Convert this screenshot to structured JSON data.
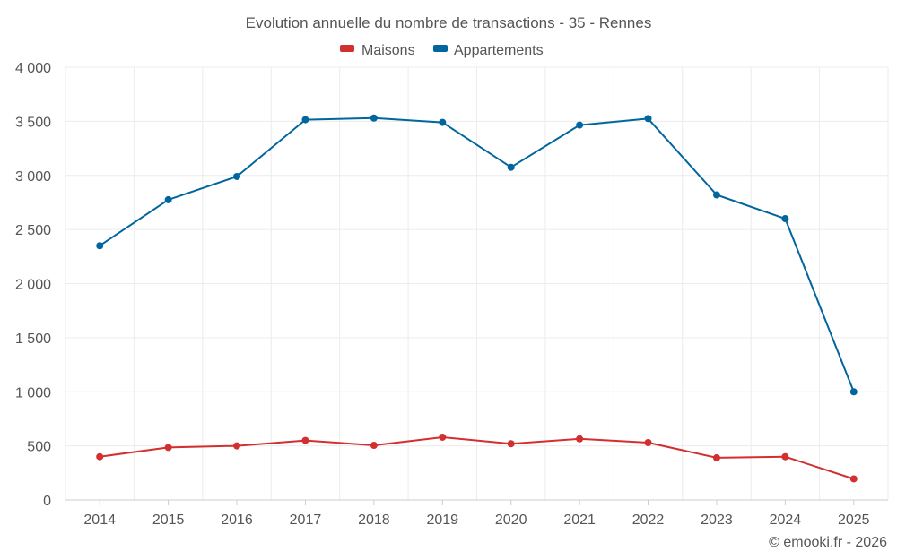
{
  "chart_data": {
    "type": "line",
    "title": "Evolution annuelle du nombre de transactions - 35 - Rennes",
    "categories": [
      "2014",
      "2015",
      "2016",
      "2017",
      "2018",
      "2019",
      "2020",
      "2021",
      "2022",
      "2023",
      "2024",
      "2025"
    ],
    "series": [
      {
        "name": "Maisons",
        "color": "#d32f2f",
        "values": [
          400,
          485,
          500,
          550,
          505,
          580,
          520,
          565,
          530,
          390,
          400,
          195
        ]
      },
      {
        "name": "Appartements",
        "color": "#01669e",
        "values": [
          2350,
          2775,
          2990,
          3515,
          3530,
          3490,
          3075,
          3465,
          3525,
          2820,
          2600,
          1000
        ]
      }
    ],
    "ylim": [
      0,
      4000
    ],
    "yticks": [
      0,
      500,
      1000,
      1500,
      2000,
      2500,
      3000,
      3500,
      4000
    ],
    "ytick_labels": [
      "0",
      "500",
      "1 000",
      "1 500",
      "2 000",
      "2 500",
      "3 000",
      "3 500",
      "4 000"
    ],
    "grid": true,
    "legend_position": "top-center"
  },
  "credit": "© emooki.fr - 2026"
}
